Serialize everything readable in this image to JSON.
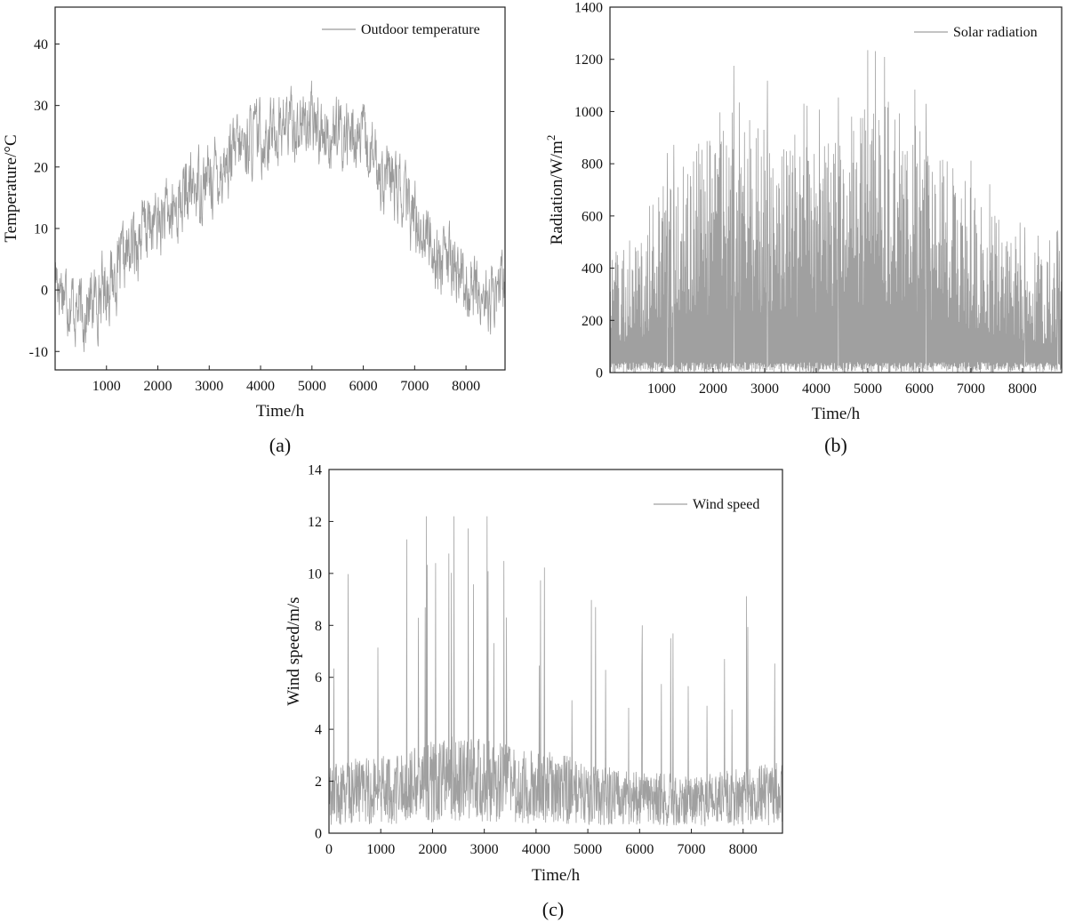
{
  "chart_data": [
    {
      "id": "a",
      "type": "line",
      "panel_label": "(a)",
      "xlabel": "Time/h",
      "ylabel": "Temperature/°C",
      "xlim": [
        0,
        8760
      ],
      "ylim": [
        -13,
        46
      ],
      "xticks": [
        1000,
        2000,
        3000,
        4000,
        5000,
        6000,
        7000,
        8000
      ],
      "yticks": [
        -10,
        0,
        10,
        20,
        30,
        40
      ],
      "legend_position": "top-right",
      "line_color": "#9a9a9a",
      "series": [
        {
          "name": "Outdoor temperature",
          "x": [
            0,
            250,
            500,
            750,
            1000,
            1250,
            1500,
            1750,
            2000,
            2250,
            2500,
            2750,
            3000,
            3250,
            3500,
            3750,
            4000,
            4250,
            4500,
            4750,
            5000,
            5250,
            5500,
            5750,
            6000,
            6250,
            6500,
            6750,
            7000,
            7250,
            7500,
            7750,
            8000,
            8250,
            8500,
            8760
          ],
          "y": [
            3,
            -1,
            -4,
            -2,
            1,
            3,
            7,
            10,
            11,
            12,
            15,
            17,
            18,
            20,
            22,
            24,
            25,
            26,
            27,
            27,
            27,
            26,
            25,
            25,
            24,
            20,
            18,
            15,
            12,
            9,
            5,
            4,
            1,
            -1,
            -2,
            2
          ],
          "min": -12,
          "max": 40
        }
      ]
    },
    {
      "id": "b",
      "type": "line",
      "panel_label": "(b)",
      "xlabel": "Time/h",
      "ylabel_main": "Radiation/W/m",
      "ylabel_sup": "2",
      "xlim": [
        0,
        8760
      ],
      "ylim": [
        0,
        1400
      ],
      "xticks": [
        1000,
        2000,
        3000,
        4000,
        5000,
        6000,
        7000,
        8000
      ],
      "yticks": [
        0,
        200,
        400,
        600,
        800,
        1000,
        1200,
        1400
      ],
      "legend_position": "top-right",
      "line_color": "#a0a0a0",
      "series": [
        {
          "name": "Solar radiation",
          "x": [
            0,
            500,
            1000,
            1500,
            2000,
            2500,
            3000,
            3500,
            4000,
            4500,
            5000,
            5500,
            6000,
            6500,
            7000,
            7500,
            8000,
            8500,
            8760
          ],
          "y_daily_peak": [
            400,
            500,
            650,
            750,
            900,
            950,
            900,
            850,
            800,
            850,
            1000,
            950,
            850,
            750,
            650,
            550,
            450,
            400,
            450
          ],
          "y_max": 1235
        }
      ]
    },
    {
      "id": "c",
      "type": "line",
      "panel_label": "(c)",
      "xlabel": "Time/h",
      "ylabel": "Wind speed/m/s",
      "xlim": [
        0,
        8760
      ],
      "ylim": [
        0,
        14
      ],
      "xticks": [
        0,
        1000,
        2000,
        3000,
        4000,
        5000,
        6000,
        7000,
        8000
      ],
      "yticks": [
        0,
        2,
        4,
        6,
        8,
        10,
        12,
        14
      ],
      "legend_position": "top-right",
      "line_color": "#a0a0a0",
      "series": [
        {
          "name": "Wind speed",
          "x": [
            0,
            500,
            1000,
            1500,
            2000,
            2500,
            3000,
            3500,
            4000,
            4500,
            5000,
            5500,
            6000,
            6500,
            7000,
            7500,
            8000,
            8500,
            8760
          ],
          "y_mean": [
            1.5,
            1.6,
            1.7,
            1.8,
            2.0,
            2.1,
            2.0,
            1.9,
            1.8,
            1.7,
            1.5,
            1.4,
            1.3,
            1.3,
            1.2,
            1.3,
            1.4,
            1.5,
            1.5
          ],
          "y_max": 12.2
        }
      ]
    }
  ]
}
